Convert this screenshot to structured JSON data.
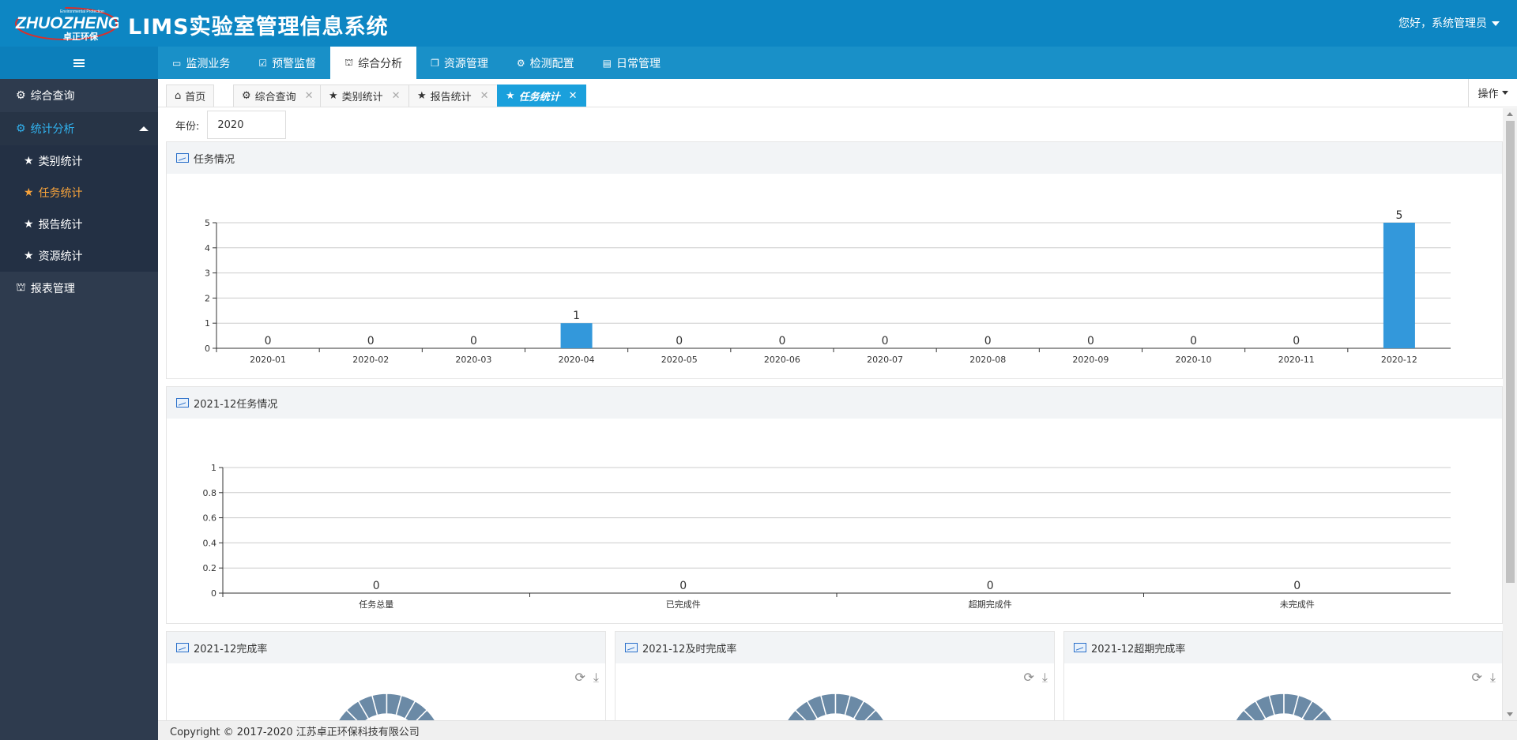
{
  "header": {
    "logo_main": "ZHUOZHENG",
    "logo_sub": "卓正环保",
    "logo_tag": "Environmental Protection",
    "title": "LIMS实验室管理信息系统",
    "greeting": "您好，系统管理员"
  },
  "topnav": [
    {
      "label": "监测业务",
      "icon": "laptop-icon"
    },
    {
      "label": "预警监督",
      "icon": "check-square-icon"
    },
    {
      "label": "综合分析",
      "icon": "binoculars-icon",
      "active": true
    },
    {
      "label": "资源管理",
      "icon": "copy-icon"
    },
    {
      "label": "检测配置",
      "icon": "gear-icon"
    },
    {
      "label": "日常管理",
      "icon": "book-icon"
    }
  ],
  "sidebar": {
    "items": [
      {
        "label": "综合查询",
        "icon": "gear-icon"
      },
      {
        "label": "统计分析",
        "icon": "gear-icon",
        "open": true
      },
      {
        "label": "报表管理",
        "icon": "binoculars-icon"
      }
    ],
    "subitems": [
      {
        "label": "类别统计",
        "icon": "star-icon"
      },
      {
        "label": "任务统计",
        "icon": "star-icon",
        "active": true
      },
      {
        "label": "报告统计",
        "icon": "star-icon"
      },
      {
        "label": "资源统计",
        "icon": "star-icon"
      }
    ]
  },
  "pagetabs": [
    {
      "label": "首页",
      "icon": "home-icon",
      "closable": false
    },
    {
      "label": "综合查询",
      "icon": "gear-icon",
      "closable": true
    },
    {
      "label": "类别统计",
      "icon": "star-icon",
      "closable": true
    },
    {
      "label": "报告统计",
      "icon": "star-icon",
      "closable": true
    },
    {
      "label": "任务统计",
      "icon": "star-icon",
      "closable": true,
      "active": true
    }
  ],
  "ops_label": "操作",
  "filter": {
    "year_label": "年份:",
    "year_value": "2020"
  },
  "panels": {
    "task_status": "任务情况",
    "month_status": "2021-12任务情况",
    "completion": "2021-12完成率",
    "ontime": "2021-12及时完成率",
    "overdue": "2021-12超期完成率"
  },
  "chart_data": [
    {
      "type": "bar",
      "title": "任务情况",
      "categories": [
        "2020-01",
        "2020-02",
        "2020-03",
        "2020-04",
        "2020-05",
        "2020-06",
        "2020-07",
        "2020-08",
        "2020-09",
        "2020-10",
        "2020-11",
        "2020-12"
      ],
      "values": [
        0,
        0,
        0,
        1,
        0,
        0,
        0,
        0,
        0,
        0,
        0,
        5
      ],
      "ylim": [
        0,
        5
      ],
      "yticks": [
        "0",
        "1",
        "2",
        "3",
        "4",
        "5"
      ],
      "grid": true,
      "color": "#3398db"
    },
    {
      "type": "bar",
      "title": "2021-12任务情况",
      "categories": [
        "任务总量",
        "已完成件",
        "超期完成件",
        "未完成件"
      ],
      "values": [
        0,
        0,
        0,
        0
      ],
      "ylim": [
        0,
        1
      ],
      "yticks": [
        "0",
        "0.2",
        "0.4",
        "0.6",
        "0.8",
        "1"
      ],
      "grid": true,
      "color": "#3398db"
    }
  ],
  "footer": "Copyright © 2017-2020 江苏卓正环保科技有限公司"
}
